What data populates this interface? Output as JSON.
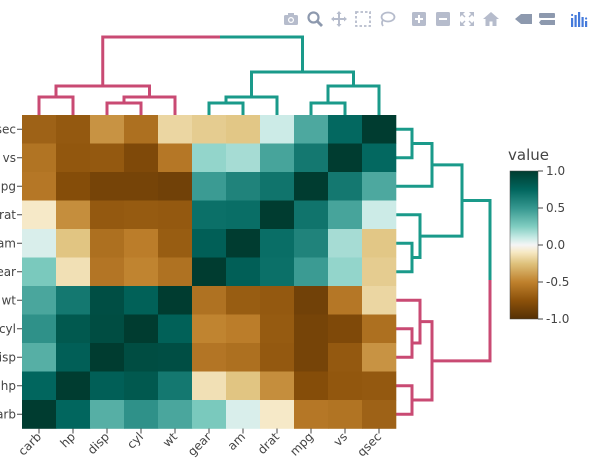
{
  "modebar": {
    "buttons": [
      {
        "name": "camera-icon",
        "title": "Download plot as a png"
      },
      {
        "name": "zoom-icon",
        "title": "Zoom"
      },
      {
        "name": "pan-icon",
        "title": "Pan"
      },
      {
        "name": "box-select-icon",
        "title": "Box Select"
      },
      {
        "name": "lasso-select-icon",
        "title": "Lasso Select"
      },
      {
        "name": "zoom-in-icon",
        "title": "Zoom in"
      },
      {
        "name": "zoom-out-icon",
        "title": "Zoom out"
      },
      {
        "name": "autoscale-icon",
        "title": "Autoscale"
      },
      {
        "name": "reset-axes-icon",
        "title": "Reset axes"
      },
      {
        "name": "spike-lines-icon",
        "title": "Toggle Spike Lines"
      },
      {
        "name": "compare-data-icon",
        "title": "Compare data on hover"
      },
      {
        "name": "plotly-logo-icon",
        "title": "Produced with Plotly"
      }
    ],
    "colors": {
      "icon": "#b6bccc",
      "active": "#8d99ae",
      "logo": "#447adb"
    }
  },
  "chart_data": {
    "type": "heatmap",
    "title": "",
    "x_labels": [
      "carb",
      "hp",
      "disp",
      "cyl",
      "wt",
      "gear",
      "am",
      "drat",
      "mpg",
      "vs",
      "qsec"
    ],
    "y_labels": [
      "qsec",
      "vs",
      "mpg",
      "drat",
      "am",
      "gear",
      "wt",
      "cyl",
      "disp",
      "hp",
      "carb"
    ],
    "variables": [
      "mpg",
      "cyl",
      "disp",
      "hp",
      "drat",
      "wt",
      "qsec",
      "vs",
      "am",
      "gear",
      "carb"
    ],
    "correlation_matrix": [
      [
        1.0,
        -0.85,
        -0.85,
        -0.78,
        0.68,
        -0.87,
        0.42,
        0.66,
        0.6,
        0.48,
        -0.55
      ],
      [
        -0.85,
        1.0,
        0.9,
        0.83,
        -0.7,
        0.78,
        -0.59,
        -0.81,
        -0.52,
        -0.49,
        0.53
      ],
      [
        -0.85,
        0.9,
        1.0,
        0.79,
        -0.71,
        0.89,
        -0.43,
        -0.71,
        -0.59,
        -0.56,
        0.39
      ],
      [
        -0.78,
        0.83,
        0.79,
        1.0,
        -0.45,
        0.66,
        -0.71,
        -0.72,
        -0.24,
        -0.13,
        0.75
      ],
      [
        0.68,
        -0.7,
        -0.71,
        -0.45,
        1.0,
        -0.71,
        0.09,
        0.44,
        0.71,
        0.7,
        -0.09
      ],
      [
        -0.87,
        0.78,
        0.89,
        0.66,
        -0.71,
        1.0,
        -0.17,
        -0.55,
        -0.69,
        -0.58,
        0.43
      ],
      [
        0.42,
        -0.59,
        -0.43,
        -0.71,
        0.09,
        -0.17,
        1.0,
        0.74,
        -0.23,
        -0.21,
        -0.66
      ],
      [
        0.66,
        -0.81,
        -0.71,
        -0.72,
        0.44,
        -0.55,
        0.74,
        1.0,
        0.17,
        0.21,
        -0.57
      ],
      [
        0.6,
        -0.52,
        -0.59,
        -0.24,
        0.71,
        -0.69,
        -0.23,
        0.17,
        1.0,
        0.79,
        0.06
      ],
      [
        0.48,
        -0.49,
        -0.56,
        -0.13,
        0.7,
        -0.58,
        -0.21,
        0.21,
        0.79,
        1.0,
        0.27
      ],
      [
        -0.55,
        0.53,
        0.39,
        0.75,
        -0.09,
        0.43,
        -0.66,
        -0.57,
        0.06,
        0.27,
        1.0
      ]
    ],
    "zmin": -1,
    "zmax": 1,
    "colorscale": {
      "name": "BrBG",
      "stops": [
        [
          -1.0,
          "#543005"
        ],
        [
          -0.75,
          "#8c510a"
        ],
        [
          -0.5,
          "#bf812d"
        ],
        [
          -0.25,
          "#dfc27d"
        ],
        [
          -0.1,
          "#f6e8c3"
        ],
        [
          0.0,
          "#f5f5f5"
        ],
        [
          0.1,
          "#c7eae5"
        ],
        [
          0.25,
          "#80cdc1"
        ],
        [
          0.5,
          "#35978f"
        ],
        [
          0.75,
          "#01665e"
        ],
        [
          1.0,
          "#003c30"
        ]
      ]
    },
    "colorbar": {
      "title": "value",
      "ticks": [
        1.0,
        0.5,
        0.0,
        -0.5,
        -1.0
      ],
      "tick_labels": [
        "1.0",
        "0.5",
        "0.0",
        "-0.5",
        "-1.0"
      ]
    },
    "dendrogram_colors": {
      "cluster1": "#c94a73",
      "cluster2": "#1a9a8a"
    },
    "dendrogram_top": {
      "left_cluster": [
        "carb",
        "hp",
        "disp",
        "cyl",
        "wt"
      ],
      "right_cluster": [
        "gear",
        "am",
        "drat",
        "mpg",
        "vs",
        "qsec"
      ]
    },
    "dendrogram_right": {
      "top_cluster": [
        "qsec",
        "vs",
        "mpg",
        "drat",
        "am",
        "gear"
      ],
      "bottom_cluster": [
        "wt",
        "cyl",
        "disp",
        "hp",
        "carb"
      ]
    }
  }
}
